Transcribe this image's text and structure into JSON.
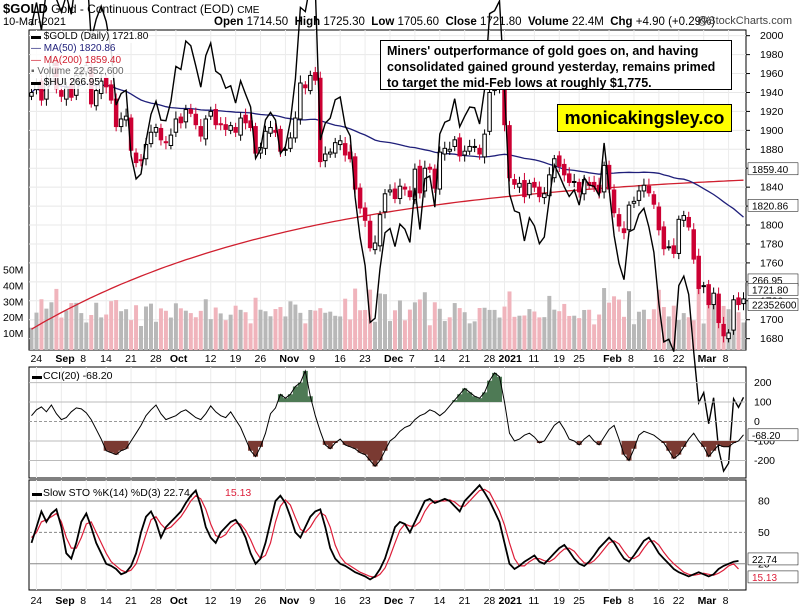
{
  "header": {
    "symbol": "$GOLD",
    "name": "Gold - Continuous Contract (EOD)",
    "exchange": "CME",
    "date": "10-Mar-2021",
    "open_label": "Open",
    "open": "1714.50",
    "high_label": "High",
    "high": "1725.30",
    "low_label": "Low",
    "low": "1705.60",
    "close_label": "Close",
    "close": "1721.80",
    "volume_label": "Volume",
    "volume": "22.4M",
    "chg_label": "Chg",
    "chg": "+4.90 (+0.29%)",
    "copyright": "@StockCharts.com"
  },
  "annotation": "Miners' outperformance of gold goes on, and having consolidated gained ground yesterday, remains primed to target the mid-Feb lows at roughly $1,775.",
  "watermark": "monicakingsley.co",
  "legend": {
    "gold": "$GOLD (Daily) 1721.80",
    "ma50": "MA(50) 1820.86",
    "ma200": "MA(200) 1859.40",
    "volume": "Volume 22,352,600",
    "hui": "$HUI 266.95"
  },
  "colors": {
    "up": "#000000",
    "down": "#cc0033",
    "ma50": "#1f1f7a",
    "ma200": "#d01f2f",
    "vol_up": "#b8b8b8",
    "vol_down": "#f0b4bc",
    "hui": "#000000",
    "cci_fill_pos": "#4e7a55",
    "cci_fill_neg": "#7a3a32",
    "sto_d": "#dd1f3a"
  },
  "chart_data": [
    {
      "type": "candlestick",
      "title": "$GOLD (Daily) 1721.80",
      "y_ticks": [
        1680,
        1700,
        1720,
        1740,
        1760,
        1780,
        1800,
        1820,
        1840,
        1860,
        1880,
        1900,
        1920,
        1940,
        1960,
        1980,
        2000
      ],
      "ylim": [
        1668,
        2006
      ],
      "x_ticks": [
        "24",
        "Sep",
        "8",
        "14",
        "21",
        "28",
        "Oct",
        "12",
        "19",
        "26",
        "Nov",
        "9",
        "16",
        "23",
        "Dec",
        "7",
        "14",
        "21",
        "28",
        "2021",
        "11",
        "19",
        "25",
        "Feb",
        "8",
        "16",
        "22",
        "Mar",
        "8"
      ],
      "x_tick_index": [
        1,
        6,
        11,
        15,
        20,
        25,
        29,
        36,
        41,
        46,
        51,
        57,
        62,
        67,
        72,
        77,
        82,
        87,
        92,
        95,
        101,
        106,
        110,
        116,
        121,
        126,
        130,
        135,
        140
      ],
      "series_gold_close": [
        1940,
        1950,
        1932,
        1952,
        1972,
        1944,
        1936,
        1945,
        1935,
        1958,
        1962,
        1968,
        1928,
        1942,
        1952,
        1946,
        1932,
        1904,
        1912,
        1915,
        1879,
        1866,
        1868,
        1885,
        1898,
        1903,
        1890,
        1887,
        1895,
        1912,
        1908,
        1922,
        1918,
        1906,
        1894,
        1912,
        1920,
        1906,
        1906,
        1901,
        1905,
        1898,
        1913,
        1908,
        1903,
        1876,
        1882,
        1899,
        1903,
        1898,
        1878,
        1880,
        1892,
        1913,
        1950,
        1945,
        1958,
        1953,
        1867,
        1875,
        1877,
        1887,
        1889,
        1874,
        1870,
        1838,
        1818,
        1805,
        1776,
        1781,
        1811,
        1833,
        1837,
        1828,
        1841,
        1838,
        1830,
        1859,
        1834,
        1860,
        1859,
        1839,
        1877,
        1881,
        1880,
        1890,
        1873,
        1878,
        1883,
        1883,
        1875,
        1896,
        1940,
        1944,
        1952,
        1906,
        1850,
        1843,
        1844,
        1830,
        1844,
        1840,
        1830,
        1833,
        1853,
        1870,
        1862,
        1853,
        1845,
        1846,
        1835,
        1848,
        1842,
        1840,
        1834,
        1863,
        1838,
        1813,
        1799,
        1792,
        1821,
        1825,
        1836,
        1842,
        1834,
        1822,
        1795,
        1775,
        1777,
        1770,
        1806,
        1810,
        1798,
        1764,
        1733,
        1736,
        1716,
        1728,
        1697,
        1683,
        1686,
        1721,
        1716,
        1722
      ],
      "ma50_value": 1820.86,
      "ma200_value": 1859.4,
      "hui_last": 266.95,
      "hui_right_labels": [
        "266.95"
      ],
      "right_labels": [
        "1859.40",
        "1820.86",
        "1721.80",
        "22352600"
      ]
    },
    {
      "type": "bar",
      "title": "Volume 22,352,600",
      "y_ticks": [
        "10M",
        "20M",
        "30M",
        "40M",
        "50M"
      ],
      "y_tick_values": [
        10,
        20,
        30,
        40,
        50
      ],
      "ylim_millions": [
        0,
        66
      ],
      "unit": "millions"
    },
    {
      "type": "line",
      "title": "CCI(20) -68.20",
      "label": "CCI(20)",
      "last": -68.2,
      "y_ticks": [
        200,
        100,
        0,
        -100,
        -200
      ],
      "ylim": [
        -290,
        280
      ],
      "values": [
        30,
        60,
        75,
        50,
        85,
        40,
        10,
        20,
        50,
        70,
        65,
        45,
        10,
        -40,
        -90,
        -150,
        -160,
        -170,
        -150,
        -140,
        -100,
        -60,
        -20,
        30,
        60,
        85,
        40,
        10,
        20,
        30,
        50,
        60,
        40,
        20,
        10,
        40,
        80,
        50,
        30,
        20,
        50,
        10,
        -30,
        -90,
        -150,
        -180,
        -130,
        -60,
        40,
        70,
        140,
        120,
        140,
        180,
        200,
        260,
        130,
        30,
        -50,
        -120,
        -140,
        -110,
        -90,
        -120,
        -130,
        -140,
        -160,
        -170,
        -200,
        -230,
        -200,
        -150,
        -100,
        -80,
        -50,
        -30,
        -20,
        10,
        30,
        40,
        60,
        50,
        30,
        50,
        80,
        110,
        140,
        170,
        150,
        130,
        120,
        150,
        210,
        250,
        230,
        100,
        -60,
        -100,
        -90,
        -70,
        -60,
        -80,
        -110,
        -100,
        -60,
        -20,
        0,
        -40,
        -90,
        -100,
        -120,
        -90,
        -70,
        -100,
        -120,
        -80,
        -40,
        -20,
        -90,
        -170,
        -200,
        -140,
        -70,
        -50,
        -60,
        -70,
        -90,
        -110,
        -150,
        -190,
        -170,
        -130,
        -90,
        -60,
        -100,
        -130,
        -180,
        -150,
        -120,
        -130,
        -130,
        -110,
        -100,
        -68.2
      ],
      "right_labels": [
        "-68.20"
      ]
    },
    {
      "type": "line",
      "title": "Slow STO %K(14) %D(3) 22.74, 15.13",
      "label": "Slow STO %K(14) %D(3)",
      "k_last": 22.74,
      "d_last": 15.13,
      "y_ticks": [
        80,
        50,
        20
      ],
      "ylim": [
        -5,
        100
      ],
      "k_values": [
        40,
        55,
        70,
        60,
        68,
        72,
        55,
        30,
        25,
        40,
        60,
        68,
        55,
        40,
        30,
        20,
        18,
        15,
        10,
        12,
        18,
        30,
        50,
        65,
        70,
        60,
        45,
        55,
        60,
        65,
        70,
        78,
        85,
        90,
        75,
        55,
        45,
        40,
        50,
        55,
        60,
        62,
        55,
        45,
        30,
        20,
        25,
        40,
        60,
        80,
        85,
        78,
        65,
        50,
        45,
        55,
        65,
        70,
        72,
        55,
        35,
        25,
        20,
        18,
        15,
        12,
        10,
        8,
        5,
        8,
        15,
        25,
        40,
        55,
        60,
        58,
        50,
        60,
        70,
        80,
        82,
        78,
        80,
        82,
        80,
        75,
        70,
        80,
        85,
        90,
        95,
        88,
        80,
        70,
        60,
        40,
        20,
        15,
        18,
        22,
        25,
        28,
        22,
        20,
        25,
        30,
        35,
        38,
        32,
        25,
        20,
        18,
        22,
        28,
        35,
        40,
        45,
        40,
        32,
        25,
        22,
        28,
        35,
        42,
        45,
        38,
        30,
        25,
        20,
        15,
        12,
        10,
        8,
        10,
        12,
        10,
        8,
        10,
        15,
        18,
        20,
        22,
        22.74
      ],
      "d_values": [
        45,
        50,
        60,
        62,
        65,
        68,
        60,
        45,
        35,
        35,
        45,
        58,
        60,
        50,
        40,
        30,
        22,
        18,
        14,
        12,
        14,
        20,
        33,
        48,
        62,
        65,
        58,
        53,
        55,
        60,
        65,
        72,
        80,
        85,
        82,
        72,
        58,
        47,
        45,
        48,
        55,
        59,
        58,
        52,
        43,
        32,
        25,
        28,
        40,
        60,
        75,
        81,
        76,
        64,
        53,
        50,
        55,
        63,
        69,
        66,
        55,
        38,
        27,
        21,
        18,
        15,
        12,
        10,
        8,
        7,
        10,
        16,
        27,
        40,
        52,
        58,
        56,
        56,
        60,
        70,
        77,
        80,
        80,
        80,
        81,
        79,
        75,
        75,
        80,
        85,
        90,
        91,
        88,
        79,
        70,
        57,
        40,
        25,
        18,
        18,
        22,
        25,
        25,
        23,
        22,
        25,
        30,
        34,
        35,
        32,
        26,
        21,
        20,
        23,
        28,
        34,
        40,
        42,
        39,
        32,
        26,
        25,
        28,
        35,
        41,
        42,
        38,
        31,
        25,
        20,
        16,
        12,
        10,
        9,
        10,
        11,
        10,
        9,
        11,
        14,
        18,
        20,
        15.13
      ],
      "right_labels": [
        "22.74",
        "15.13"
      ]
    }
  ]
}
